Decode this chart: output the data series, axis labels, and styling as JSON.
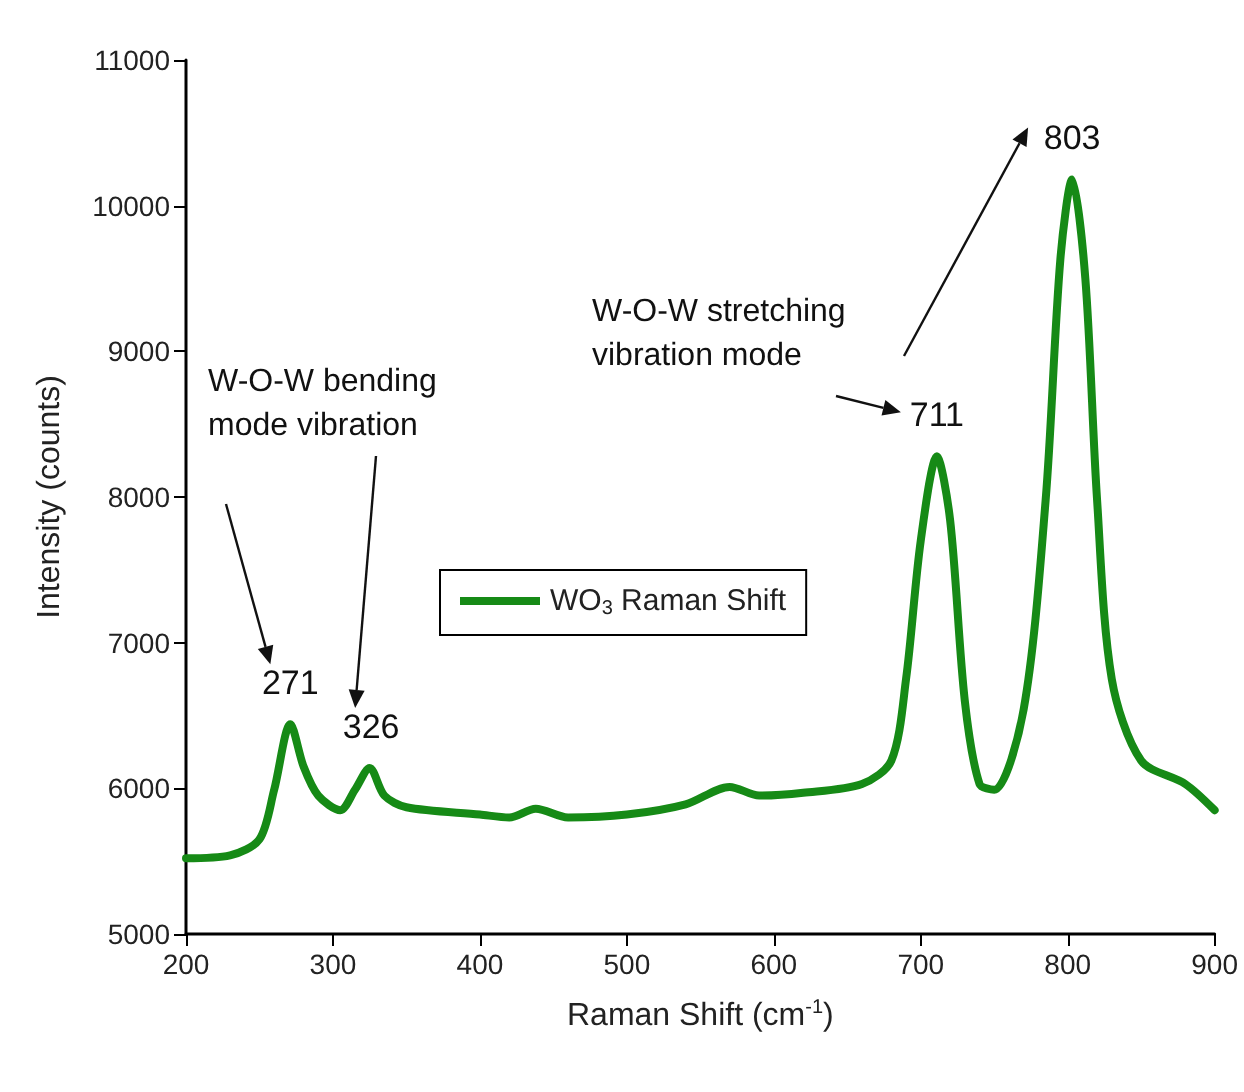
{
  "chart_data": {
    "type": "line",
    "xlabel": "Raman Shift (cm$^{-1}$)",
    "ylabel": "Intensity (counts)",
    "x": [
      200,
      230,
      250,
      260,
      271,
      280,
      290,
      305,
      315,
      325,
      335,
      350,
      400,
      420,
      438,
      460,
      500,
      540,
      570,
      590,
      620,
      660,
      680,
      690,
      700,
      711,
      720,
      730,
      740,
      750,
      770,
      785,
      795,
      803,
      812,
      820,
      830,
      850,
      880,
      900
    ],
    "series": [
      {
        "name": "WO$_{3}$ Raman Shift",
        "color": "#168a16",
        "values": [
          5520,
          5540,
          5650,
          5990,
          6440,
          6150,
          5950,
          5850,
          5990,
          6140,
          5950,
          5870,
          5820,
          5800,
          5860,
          5800,
          5820,
          5890,
          6010,
          5950,
          5970,
          6030,
          6190,
          6750,
          7700,
          8280,
          7840,
          6600,
          6030,
          5990,
          6540,
          7980,
          9630,
          10180,
          9500,
          7980,
          6750,
          6190,
          6030,
          5850
        ]
      }
    ],
    "xlim": [
      200,
      900
    ],
    "xticks": [
      200,
      300,
      400,
      500,
      600,
      700,
      800,
      900
    ],
    "ylim": [
      5000,
      11000
    ],
    "yticks": [
      5000,
      6000,
      7000,
      8000,
      9000,
      10000,
      11000
    ],
    "grid": false,
    "legend": "left",
    "marker": "none",
    "line_style": "solid",
    "annotations": [
      {
        "text": "271",
        "x": 271,
        "y": 6440
      },
      {
        "text": "326",
        "x": 326,
        "y": 6140
      },
      {
        "text": "711",
        "x": 711,
        "y": 8280
      },
      {
        "text": "803",
        "x": 803,
        "y": 10180
      },
      "W-O-W bending\nmode vibration",
      "W-O-W stretching\nvibration mode"
    ]
  }
}
